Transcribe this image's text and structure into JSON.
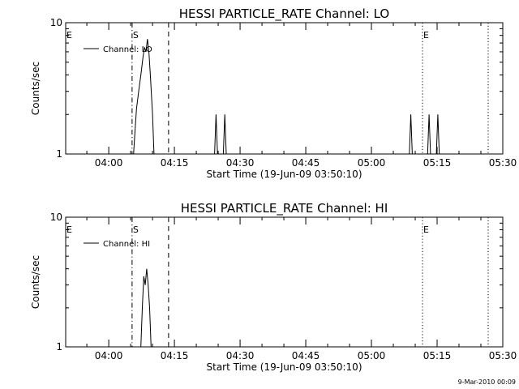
{
  "timestamp": "9-Mar-2010 00:09",
  "chart_data": [
    {
      "type": "line",
      "title": "HESSI PARTICLE_RATE Channel: LO",
      "xlabel": "Start Time (19-Jun-09 03:50:10)",
      "ylabel": "Counts/sec",
      "xlim": [
        "03:50:10",
        "05:30:00"
      ],
      "x_ticks": [
        "04:00",
        "04:15",
        "04:30",
        "04:45",
        "05:00",
        "05:15",
        "05:30"
      ],
      "y_scale": "log",
      "ylim": [
        1,
        10
      ],
      "y_ticks": [
        "1",
        "10"
      ],
      "legend": {
        "label": "Channel: LO",
        "position": "top-left"
      },
      "series": [
        {
          "name": "Channel: LO",
          "points": [
            [
              "04:05:40",
              1
            ],
            [
              "04:06:00",
              1.5
            ],
            [
              "04:06:20",
              2.2
            ],
            [
              "04:06:50",
              3.0
            ],
            [
              "04:07:20",
              4.0
            ],
            [
              "04:07:50",
              5.5
            ],
            [
              "04:08:10",
              6.5
            ],
            [
              "04:08:30",
              6.0
            ],
            [
              "04:08:50",
              7.5
            ],
            [
              "04:09:10",
              6.0
            ],
            [
              "04:09:30",
              4.0
            ],
            [
              "04:10:00",
              2.0
            ],
            [
              "04:10:20",
              1
            ],
            [
              "04:24:10",
              1
            ],
            [
              "04:24:30",
              2
            ],
            [
              "04:24:50",
              1
            ],
            [
              "04:26:10",
              1
            ],
            [
              "04:26:30",
              2
            ],
            [
              "04:26:50",
              1
            ],
            [
              "05:08:40",
              1
            ],
            [
              "05:09:00",
              2
            ],
            [
              "05:09:20",
              1
            ],
            [
              "05:12:50",
              1
            ],
            [
              "05:13:10",
              2
            ],
            [
              "05:13:30",
              1
            ],
            [
              "05:14:50",
              1
            ],
            [
              "05:15:10",
              2
            ],
            [
              "05:15:30",
              1
            ]
          ]
        }
      ],
      "vertical_lines": [
        {
          "time": "04:05:20",
          "style": "dash-dot",
          "label": "S"
        },
        {
          "time": "04:13:40",
          "style": "dashed",
          "label": ""
        },
        {
          "time": "05:11:40",
          "style": "dotted",
          "label": "E"
        },
        {
          "time": "05:26:40",
          "style": "dotted",
          "label": ""
        }
      ],
      "edge_label": "E"
    },
    {
      "type": "line",
      "title": "HESSI PARTICLE_RATE Channel: HI",
      "xlabel": "Start Time (19-Jun-09 03:50:10)",
      "ylabel": "Counts/sec",
      "xlim": [
        "03:50:10",
        "05:30:00"
      ],
      "x_ticks": [
        "04:00",
        "04:15",
        "04:30",
        "04:45",
        "05:00",
        "05:15",
        "05:30"
      ],
      "y_scale": "log",
      "ylim": [
        1,
        10
      ],
      "y_ticks": [
        "1",
        "10"
      ],
      "legend": {
        "label": "Channel: HI",
        "position": "top-left"
      },
      "series": [
        {
          "name": "Channel: HI",
          "points": [
            [
              "04:07:20",
              1
            ],
            [
              "04:07:40",
              2.0
            ],
            [
              "04:08:00",
              3.5
            ],
            [
              "04:08:20",
              3.0
            ],
            [
              "04:08:40",
              4.0
            ],
            [
              "04:09:00",
              3.0
            ],
            [
              "04:09:20",
              2.0
            ],
            [
              "04:09:40",
              1
            ]
          ]
        }
      ],
      "vertical_lines": [
        {
          "time": "04:05:20",
          "style": "dash-dot",
          "label": "S"
        },
        {
          "time": "04:13:40",
          "style": "dashed",
          "label": ""
        },
        {
          "time": "05:11:40",
          "style": "dotted",
          "label": "E"
        },
        {
          "time": "05:26:40",
          "style": "dotted",
          "label": ""
        }
      ],
      "edge_label": "E"
    }
  ]
}
